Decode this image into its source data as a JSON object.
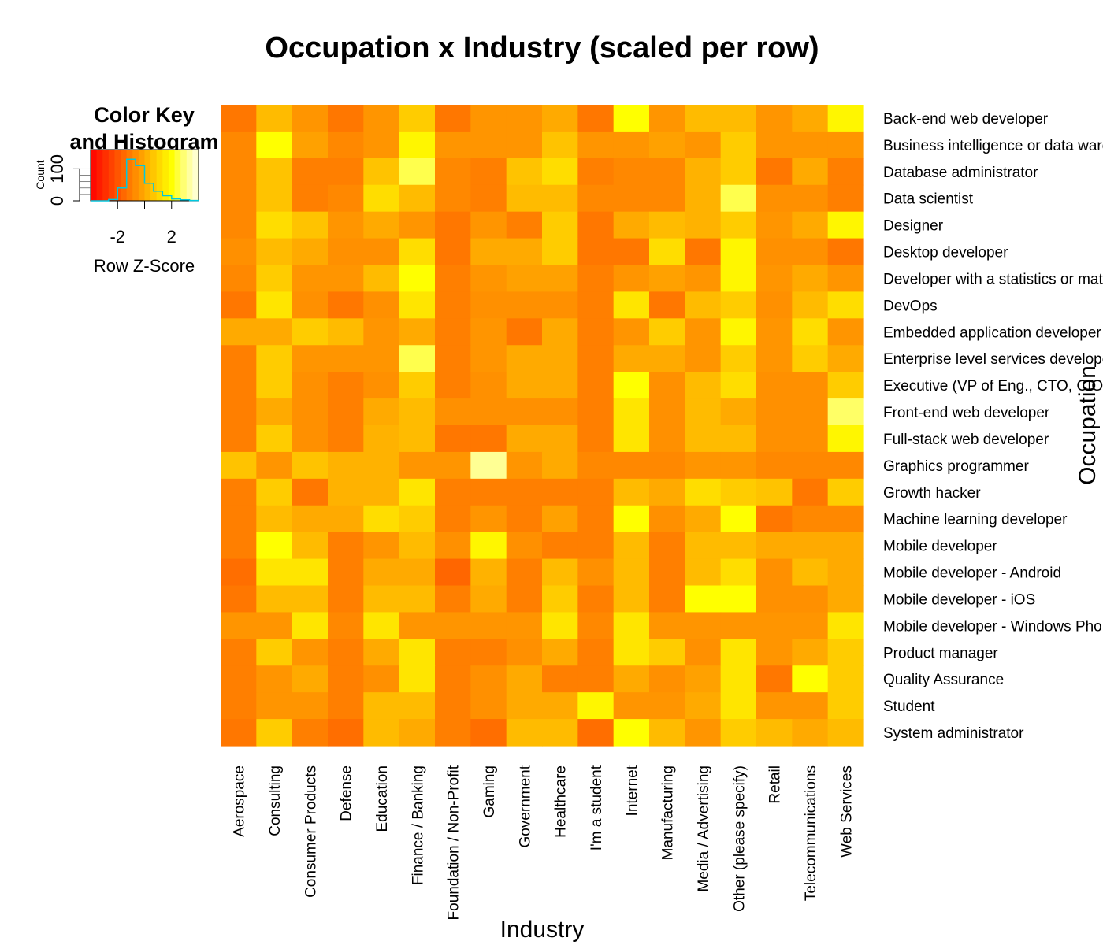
{
  "chart_data": {
    "type": "heatmap",
    "title": "Occupation x Industry (scaled per row)",
    "xlabel": "Industry",
    "ylabel": "Occupation",
    "columns": [
      "Aerospace",
      "Consulting",
      "Consumer Products",
      "Defense",
      "Education",
      "Finance / Banking",
      "Foundation / Non-Profit",
      "Gaming",
      "Government",
      "Healthcare",
      "I'm a student",
      "Internet",
      "Manufacturing",
      "Media / Advertising",
      "Other (please specify)",
      "Retail",
      "Telecommunications",
      "Web Services"
    ],
    "rows": [
      "Back-end web developer",
      "Business intelligence or data warehousing expert",
      "Database administrator",
      "Data scientist",
      "Designer",
      "Desktop developer",
      "Developer with a statistics or mathematics background",
      "DevOps",
      "Embedded application developer",
      "Enterprise level services developer",
      "Executive (VP of Eng., CTO, CIO, etc.)",
      "Front-end web developer",
      "Full-stack web developer",
      "Graphics programmer",
      "Growth hacker",
      "Machine learning developer",
      "Mobile developer",
      "Mobile developer - Android",
      "Mobile developer - iOS",
      "Mobile developer - Windows Phone",
      "Product manager",
      "Quality Assurance",
      "Student",
      "System administrator"
    ],
    "values": [
      [
        -1.2,
        0.4,
        -0.5,
        -1.2,
        -0.5,
        0.8,
        -1.2,
        -0.5,
        -0.5,
        0.0,
        -1.2,
        2.0,
        -0.5,
        0.4,
        0.4,
        -0.5,
        0.0,
        1.8
      ],
      [
        -0.8,
        2.0,
        -0.2,
        -0.8,
        -0.5,
        1.8,
        -0.5,
        -0.5,
        -0.5,
        0.6,
        -0.5,
        -0.5,
        -0.2,
        -0.5,
        0.8,
        -0.5,
        -0.5,
        -0.5
      ],
      [
        -0.8,
        0.6,
        -1.0,
        -1.0,
        0.6,
        2.6,
        -0.8,
        -1.0,
        0.6,
        1.2,
        -1.0,
        -0.8,
        -0.8,
        0.2,
        0.8,
        -1.2,
        0.0,
        -1.0
      ],
      [
        -0.8,
        0.6,
        -1.0,
        -0.8,
        1.2,
        0.4,
        -0.8,
        -1.0,
        0.4,
        0.4,
        -0.8,
        -0.8,
        -0.8,
        0.2,
        2.6,
        -0.6,
        -0.6,
        -1.0
      ],
      [
        -0.8,
        1.2,
        0.6,
        -0.5,
        0.0,
        -0.5,
        -1.2,
        -0.5,
        -1.0,
        0.8,
        -1.2,
        0.0,
        0.4,
        0.2,
        0.8,
        -0.5,
        0.0,
        1.8
      ],
      [
        -0.6,
        0.4,
        0.0,
        -0.6,
        -0.6,
        1.2,
        -1.2,
        0.0,
        0.0,
        0.8,
        -1.2,
        -1.2,
        1.2,
        -1.2,
        1.8,
        -0.6,
        -0.6,
        -1.2
      ],
      [
        -0.8,
        0.8,
        -0.5,
        -0.5,
        0.4,
        2.0,
        -1.0,
        -0.5,
        -0.2,
        -0.2,
        -1.0,
        -0.5,
        -0.2,
        -0.5,
        1.8,
        -0.5,
        0.0,
        -0.5
      ],
      [
        -1.2,
        1.4,
        -0.6,
        -1.2,
        -0.6,
        1.4,
        -1.0,
        -0.6,
        -0.6,
        -0.6,
        -1.0,
        1.4,
        -1.2,
        0.4,
        0.8,
        -0.6,
        0.4,
        1.2
      ],
      [
        0.0,
        0.0,
        0.8,
        0.4,
        -0.5,
        0.0,
        -1.0,
        -0.5,
        -1.2,
        0.0,
        -1.0,
        -0.5,
        0.8,
        -0.5,
        1.8,
        -0.5,
        1.2,
        -0.5
      ],
      [
        -1.0,
        0.8,
        -0.5,
        -0.5,
        -0.5,
        2.6,
        -1.0,
        -0.5,
        0.0,
        0.0,
        -1.0,
        0.0,
        0.0,
        -0.5,
        0.8,
        -0.5,
        0.8,
        0.0
      ],
      [
        -1.0,
        0.8,
        -0.6,
        -1.0,
        -0.6,
        0.8,
        -1.0,
        -0.6,
        0.0,
        0.0,
        -1.0,
        2.0,
        -0.6,
        0.4,
        1.2,
        -0.6,
        -0.6,
        0.8
      ],
      [
        -1.0,
        0.0,
        -0.6,
        -1.0,
        0.0,
        0.4,
        -0.6,
        -0.6,
        -0.6,
        -0.6,
        -1.0,
        1.4,
        -0.6,
        0.4,
        0.0,
        -0.6,
        -0.6,
        2.8
      ],
      [
        -1.0,
        0.8,
        -0.6,
        -1.0,
        0.2,
        0.4,
        -1.2,
        -1.2,
        0.0,
        0.0,
        -1.0,
        1.4,
        -0.6,
        0.4,
        0.4,
        -0.6,
        -0.6,
        1.8
      ],
      [
        0.6,
        -0.5,
        0.6,
        0.2,
        0.2,
        -0.5,
        -0.5,
        3.2,
        -0.5,
        0.0,
        -0.8,
        -0.8,
        -0.8,
        -0.5,
        -0.5,
        -0.8,
        -0.8,
        -0.8
      ],
      [
        -1.0,
        0.8,
        -1.2,
        0.2,
        0.2,
        1.4,
        -1.0,
        -1.0,
        -1.0,
        -1.0,
        -1.0,
        0.4,
        0.0,
        1.2,
        0.8,
        0.6,
        -1.2,
        0.8
      ],
      [
        -1.0,
        0.4,
        0.0,
        0.0,
        1.2,
        0.8,
        -1.0,
        -0.5,
        -1.0,
        -0.2,
        -1.0,
        2.0,
        -0.6,
        0.0,
        2.0,
        -1.2,
        -0.8,
        -0.8
      ],
      [
        -1.0,
        2.0,
        0.4,
        -1.0,
        -0.5,
        0.4,
        -0.6,
        1.8,
        -0.6,
        -1.0,
        -1.0,
        0.4,
        -1.0,
        0.4,
        0.4,
        0.0,
        0.0,
        0.0
      ],
      [
        -1.4,
        1.4,
        1.4,
        -1.0,
        0.0,
        0.0,
        -1.6,
        0.2,
        -1.0,
        0.4,
        -0.6,
        0.4,
        -1.0,
        0.4,
        1.2,
        -0.6,
        0.4,
        0.0
      ],
      [
        -1.2,
        0.4,
        0.4,
        -1.0,
        0.4,
        0.4,
        -1.0,
        0.0,
        -1.0,
        0.8,
        -1.0,
        0.4,
        -1.0,
        2.0,
        2.0,
        -0.6,
        -0.6,
        0.0
      ],
      [
        -0.5,
        -0.5,
        1.4,
        -0.8,
        1.4,
        -0.5,
        -0.5,
        -0.5,
        -0.5,
        1.4,
        -0.8,
        1.4,
        -0.5,
        -0.5,
        -0.5,
        -0.5,
        -0.5,
        1.4
      ],
      [
        -1.0,
        0.8,
        -0.5,
        -1.0,
        0.0,
        1.4,
        -1.0,
        -1.0,
        -0.6,
        0.0,
        -1.0,
        1.4,
        0.8,
        -0.6,
        1.4,
        -0.5,
        0.0,
        0.8
      ],
      [
        -1.0,
        -0.5,
        0.0,
        -1.0,
        -0.6,
        1.4,
        -1.0,
        -0.6,
        0.0,
        -1.0,
        -1.0,
        0.0,
        -0.6,
        -0.2,
        1.4,
        -1.2,
        2.0,
        0.8
      ],
      [
        -1.0,
        -0.5,
        -0.5,
        -1.0,
        0.4,
        0.4,
        -1.0,
        -0.6,
        0.0,
        0.0,
        1.8,
        -0.5,
        -0.5,
        0.0,
        1.4,
        -0.5,
        -0.5,
        0.8
      ],
      [
        -1.2,
        0.8,
        -1.0,
        -1.4,
        0.4,
        0.0,
        -1.0,
        -1.4,
        0.4,
        0.4,
        -1.4,
        2.0,
        0.4,
        -0.5,
        0.8,
        0.4,
        0.0,
        0.4
      ]
    ],
    "color_scale": [
      "#ff0000",
      "#ff2a00",
      "#ff5500",
      "#ff7f00",
      "#ffaa00",
      "#ffd400",
      "#ffff00",
      "#ffff80",
      "#ffffe6"
    ],
    "color_key": {
      "title_line1": "Color Key",
      "title_line2": "and Histogram",
      "xlabel": "Row Z-Score",
      "ylabel": "Count",
      "x_ticks": [
        "-2",
        "2"
      ],
      "y_ticks": [
        "0",
        "100"
      ],
      "range": [
        -4,
        4
      ],
      "histogram_counts": [
        0,
        0,
        4,
        40,
        130,
        110,
        55,
        30,
        16,
        6,
        3,
        1
      ]
    }
  }
}
